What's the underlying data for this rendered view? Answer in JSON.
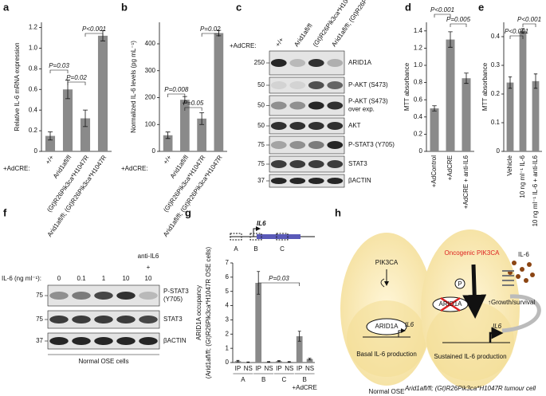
{
  "chart_data": [
    {
      "type": "bar",
      "panel": "a",
      "ylabel": "Relative IL-6 mRNA expression",
      "prefix": "+AdCRE:",
      "categories": [
        "+/+",
        "Arid1afl/fl",
        "(Gt)R26Pik3ca*H1047R",
        "Arid1afl/fl; (Gt)R26Pik3ca*H1047R"
      ],
      "values": [
        0.15,
        0.6,
        0.32,
        1.12
      ],
      "errors": [
        0.04,
        0.09,
        0.08,
        0.05
      ],
      "color": "#8a8a8a",
      "ylim": [
        0,
        1.25
      ],
      "yticks": [
        0,
        0.2,
        0.4,
        0.6,
        0.8,
        {
          "value": 1,
          "label": "1.0"
        },
        1.2
      ],
      "annotations": [
        "P=0.03",
        "P=0.02",
        "P<0.001"
      ]
    },
    {
      "type": "bar",
      "panel": "b",
      "ylabel": "Normalized IL-6 levels (pg mL⁻¹)",
      "prefix": "+AdCRE:",
      "categories": [
        "+/+",
        "Arid1afl/fl",
        "(Gt)R26Pik3ca*H1047R",
        "Arid1afl/fl; (Gt)R26Pik3ca*H1047R"
      ],
      "values": [
        60,
        192,
        122,
        440
      ],
      "errors": [
        12,
        12,
        22,
        10
      ],
      "color": "#8a8a8a",
      "ylim": [
        0,
        480
      ],
      "yticks": [
        0,
        100,
        200,
        300,
        400
      ],
      "annotations": [
        "P=0.008",
        "P=0.05",
        "P=0.02"
      ]
    },
    {
      "type": "bar",
      "panel": "d",
      "ylabel": "MTT absorbance",
      "categories": [
        "+AdControl",
        "+AdCRE",
        "+AdCRE + anti-IL6"
      ],
      "values": [
        0.5,
        1.3,
        0.85
      ],
      "errors": [
        0.03,
        0.09,
        0.06
      ],
      "color": "#8a8a8a",
      "ylim": [
        0,
        1.5
      ],
      "yticks": [
        0,
        0.2,
        0.4,
        0.6,
        0.8,
        {
          "value": 1,
          "label": "1.0"
        },
        1.2,
        1.4
      ],
      "annotations": [
        "P<0.001",
        "P=0.005"
      ]
    },
    {
      "type": "bar",
      "panel": "e",
      "ylabel": "MTT absorbance",
      "categories": [
        "Vehicle",
        "10 ng ml⁻¹ IL-6",
        "10 ng ml⁻¹ IL-6 + anti-IL6"
      ],
      "values": [
        0.24,
        0.42,
        0.245
      ],
      "errors": [
        0.02,
        0.008,
        0.025
      ],
      "color": "#8a8a8a",
      "ylim": [
        0,
        0.45
      ],
      "yticks": [
        0,
        0.1,
        0.2,
        0.3,
        0.4
      ],
      "annotations": [
        "P<0.001",
        "P<0.001"
      ]
    },
    {
      "type": "bar",
      "panel": "g",
      "ylabel": "ARID1A occupancy",
      "ylabel2": "(Arid1afl/fl; (Gt)R26Pik3ca*H1047R OSE cells)",
      "categories": [
        "IP",
        "NS",
        "IP",
        "NS",
        "IP",
        "NS",
        "IP",
        "NS"
      ],
      "groups": [
        "A",
        "B",
        "C",
        "B"
      ],
      "group_note": "+AdCRE",
      "values": [
        0.1,
        0.02,
        5.6,
        0.05,
        0.1,
        0.05,
        1.85,
        0.25
      ],
      "errors": [
        0.05,
        0.02,
        0.8,
        0.02,
        0.03,
        0.02,
        0.35,
        0.05
      ],
      "color": "#8a8a8a",
      "ylim": [
        0,
        7
      ],
      "yticks": [
        0,
        1,
        2,
        3,
        4,
        5,
        6,
        7
      ],
      "annotations": [
        "P=0.03"
      ],
      "gene": "IL6",
      "regions": [
        "A",
        "B",
        "C"
      ]
    }
  ],
  "blot_c": {
    "panel": "c",
    "prefix": "+AdCRE:",
    "lanes": [
      "+/+",
      "Arid1afl/fl",
      "(Gt)R26Pik3ca*H1047R",
      "Arid1afl/fl; (Gt)R26Pik3ca*H1047R"
    ],
    "rows": [
      {
        "label": "ARID1A",
        "marker": "250"
      },
      {
        "label": "P-AKT (S473)",
        "marker": "50"
      },
      {
        "label": "P-AKT (S473)",
        "note": "over exp.",
        "marker": "50"
      },
      {
        "label": "AKT",
        "marker": "50"
      },
      {
        "label": "P-STAT3 (Y705)",
        "marker": "75"
      },
      {
        "label": "STAT3",
        "marker": "75"
      },
      {
        "label": "βACTIN",
        "marker": "37"
      }
    ]
  },
  "blot_f": {
    "panel": "f",
    "prefix": "IL-6 (ng ml⁻¹):",
    "lanes": [
      "0",
      "0.1",
      "1",
      "10",
      "10"
    ],
    "treatment": "anti-IL6",
    "treatment_sign": "+",
    "caption": "Normal OSE cells",
    "rows": [
      {
        "label": "P-STAT3",
        "note": "(Y705)",
        "marker": "75"
      },
      {
        "label": "STAT3",
        "marker": "75"
      },
      {
        "label": "βACTIN",
        "marker": "37"
      }
    ]
  },
  "diagram_h": {
    "panel": "h",
    "left": {
      "kinase": "PIK3CA",
      "factor": "ARID1A",
      "gene": "IL6",
      "output": "Basal IL-6 production",
      "caption": "Normal OSE"
    },
    "right": {
      "kinase": "Oncogenic PIK3CA",
      "phospho": "P",
      "factor": "ARID1A",
      "cytokine": "IL-6",
      "effect": "↑Growth/survival",
      "gene": "IL6",
      "output": "Sustained IL-6 production",
      "caption": "Arid1afl/fl; (Gt)R26Pik3ca*H1047R tumour cell"
    }
  }
}
